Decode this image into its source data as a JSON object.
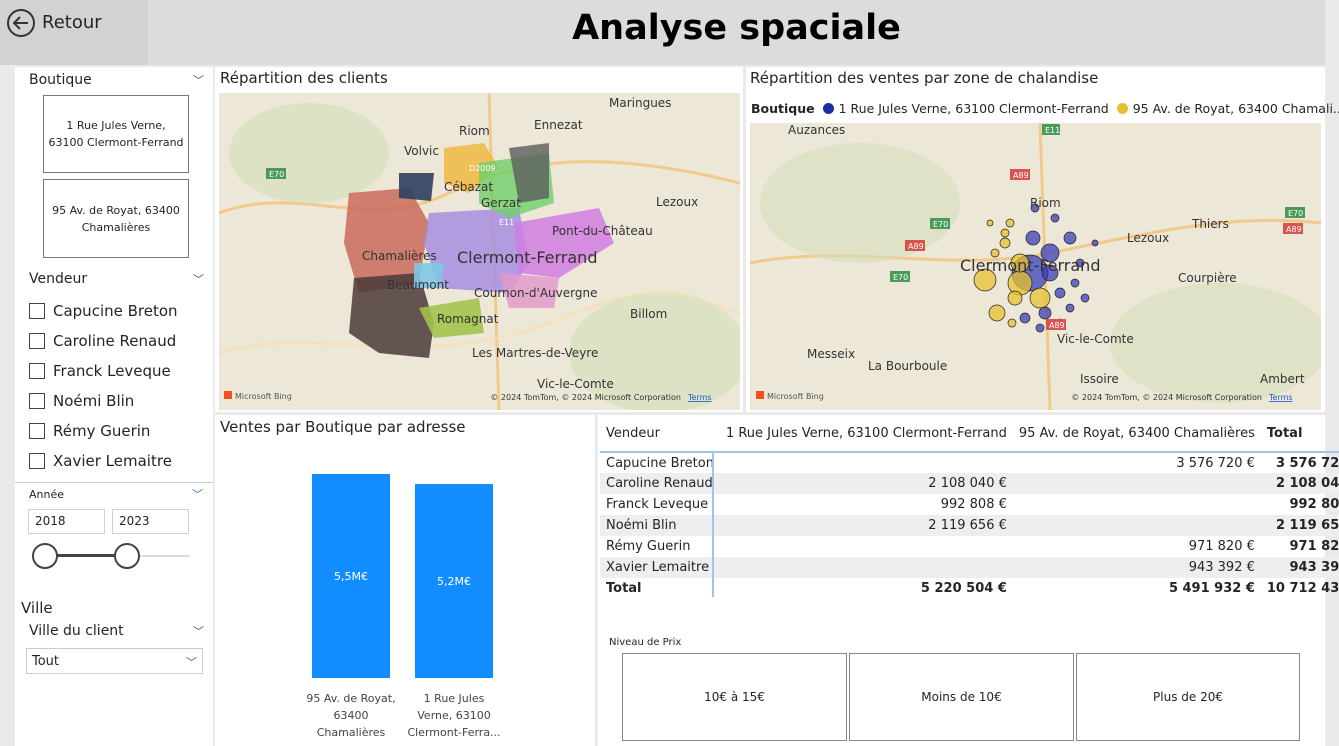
{
  "header": {
    "back_label": "Retour",
    "title": "Analyse spaciale"
  },
  "slicers": {
    "boutique": {
      "label": "Boutique",
      "options": [
        "1 Rue Jules Verne, 63100 Clermont-Ferrand",
        "95 Av. de Royat, 63400 Chamalières"
      ]
    },
    "vendeur": {
      "label": "Vendeur",
      "options": [
        "Capucine Breton",
        "Caroline Renaud",
        "Franck Leveque",
        "Noémi Blin",
        "Rémy Guerin",
        "Xavier Lemaitre"
      ]
    },
    "annee": {
      "label": "Année",
      "from": "2018",
      "to": "2023"
    },
    "ville": {
      "section": "Ville",
      "label": "Ville du client",
      "value": "Tout"
    }
  },
  "map_clients": {
    "title": "Répartition des clients",
    "places": [
      "Maringues",
      "Ennezat",
      "Riom",
      "Volvic",
      "Cébazat",
      "Gerzat",
      "Lezoux",
      "Pont-du-Château",
      "Clermont-Ferrand",
      "Chamalières",
      "Beaumont",
      "Cournon-d'Auvergne",
      "Romagnat",
      "Billom",
      "Les Martres-de-Veyre",
      "Vic-le-Comte"
    ],
    "road_labels": [
      "E70",
      "D2009",
      "E11"
    ],
    "bing": "Microsoft Bing",
    "copyright": "© 2024 TomTom, © 2024 Microsoft Corporation",
    "terms": "Terms"
  },
  "map_ventes": {
    "title": "Répartition des ventes par zone de chalandise",
    "legend_title": "Boutique",
    "legend": [
      {
        "label": "1 Rue Jules Verne, 63100 Clermont-Ferrand",
        "color": "#1a2ea8"
      },
      {
        "label": "95 Av. de Royat, 63400 Chamali...",
        "color": "#e6c12e"
      }
    ],
    "places": [
      "Auzances",
      "Riom",
      "Thiers",
      "Lezoux",
      "Clermont-Ferrand",
      "Courpière",
      "Vic-le-Comte",
      "Messeix",
      "La Bourboule",
      "Issoire",
      "Ambert"
    ],
    "road_labels": [
      "E11",
      "A89",
      "E70",
      "A89",
      "E70",
      "A89",
      "E70",
      "A89"
    ],
    "bing": "Microsoft Bing",
    "copyright": "© 2024 TomTom, © 2024 Microsoft Corporation",
    "terms": "Terms"
  },
  "chart_data": {
    "type": "bar",
    "title": "Ventes par Boutique par adresse",
    "categories": [
      "95 Av. de Royat, 63400 Chamalières",
      "1 Rue Jules Verne, 63100 Clermont-Ferra..."
    ],
    "values": [
      5.49,
      5.22
    ],
    "unit": "M€",
    "data_labels": [
      "5,5M€",
      "5,2M€"
    ],
    "color": "#118dff"
  },
  "table": {
    "headers": [
      "Vendeur",
      "1 Rue Jules Verne, 63100 Clermont-Ferrand",
      "95 Av. de Royat, 63400 Chamalières",
      "Total"
    ],
    "rows": [
      [
        "Capucine Breton",
        "",
        "3 576 720 €",
        "3 576 720 €"
      ],
      [
        "Caroline Renaud",
        "2 108 040 €",
        "",
        "2 108 040 €"
      ],
      [
        "Franck Leveque",
        "992 808 €",
        "",
        "992 808 €"
      ],
      [
        "Noémi Blin",
        "2 119 656 €",
        "",
        "2 119 656 €"
      ],
      [
        "Rémy Guerin",
        "",
        "971 820 €",
        "971 820 €"
      ],
      [
        "Xavier Lemaitre",
        "",
        "943 392 €",
        "943 392 €"
      ]
    ],
    "total": [
      "Total",
      "5 220 504 €",
      "5 491 932 €",
      "10 712 436 €"
    ]
  },
  "prix": {
    "label": "Niveau de Prix",
    "options": [
      "10€ à 15€",
      "Moins de 10€",
      "Plus de 20€"
    ]
  }
}
